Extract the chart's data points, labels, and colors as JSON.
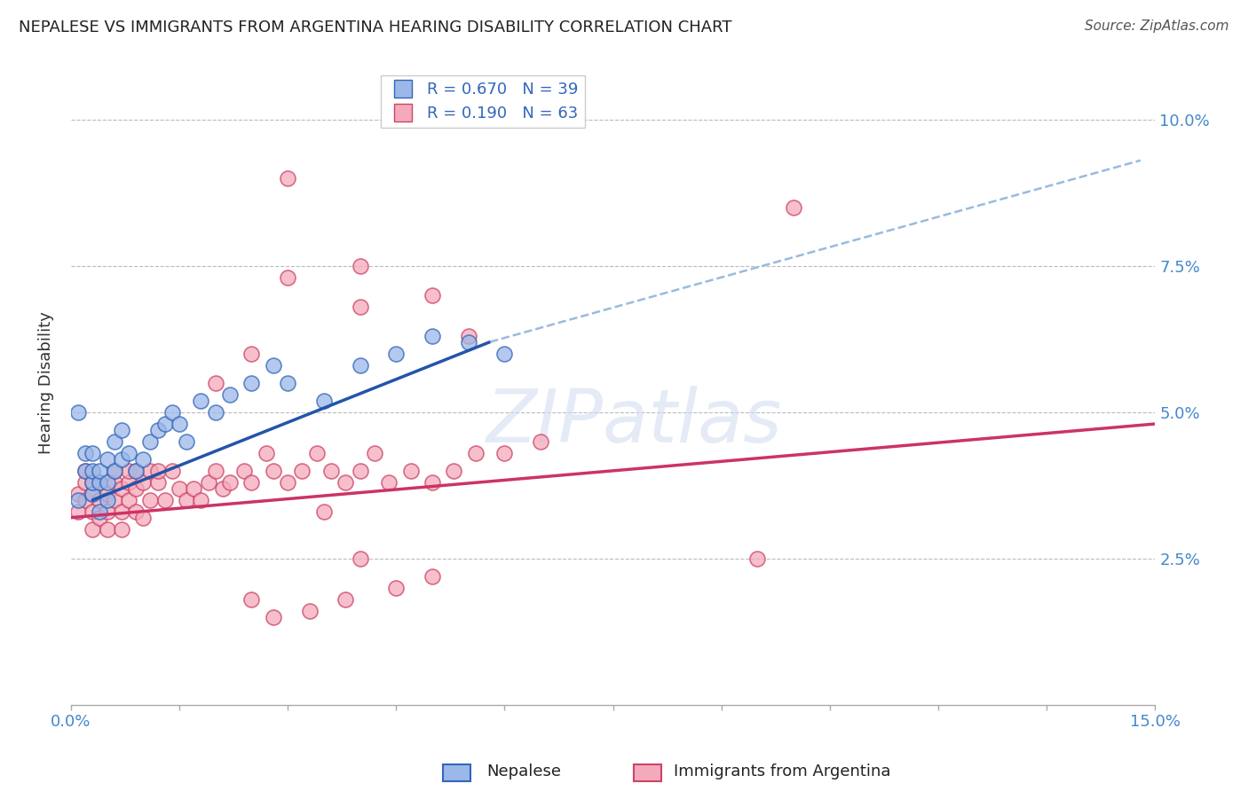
{
  "title": "NEPALESE VS IMMIGRANTS FROM ARGENTINA HEARING DISABILITY CORRELATION CHART",
  "source": "Source: ZipAtlas.com",
  "ylabel": "Hearing Disability",
  "xlim": [
    0.0,
    0.15
  ],
  "ylim": [
    0.0,
    0.11
  ],
  "yticks": [
    0.025,
    0.05,
    0.075,
    0.1
  ],
  "yticklabels": [
    "2.5%",
    "5.0%",
    "7.5%",
    "10.0%"
  ],
  "legend_r1": "R = 0.670",
  "legend_n1": "N = 39",
  "legend_r2": "R = 0.190",
  "legend_n2": "N = 63",
  "blue_scatter_color": "#9BB8E8",
  "blue_edge_color": "#3366BB",
  "pink_scatter_color": "#F5AABC",
  "pink_edge_color": "#CC4466",
  "blue_line_color": "#2255AA",
  "pink_line_color": "#CC3366",
  "dashed_line_color": "#99BBDD",
  "watermark_text": "ZIPatlas",
  "nepalese_x": [
    0.001,
    0.001,
    0.002,
    0.002,
    0.003,
    0.003,
    0.003,
    0.003,
    0.004,
    0.004,
    0.004,
    0.005,
    0.005,
    0.005,
    0.006,
    0.006,
    0.007,
    0.007,
    0.008,
    0.009,
    0.01,
    0.011,
    0.012,
    0.013,
    0.014,
    0.015,
    0.016,
    0.018,
    0.02,
    0.022,
    0.025,
    0.028,
    0.03,
    0.035,
    0.04,
    0.045,
    0.05,
    0.055,
    0.06
  ],
  "nepalese_y": [
    0.05,
    0.035,
    0.04,
    0.043,
    0.036,
    0.038,
    0.04,
    0.043,
    0.033,
    0.038,
    0.04,
    0.035,
    0.038,
    0.042,
    0.04,
    0.045,
    0.042,
    0.047,
    0.043,
    0.04,
    0.042,
    0.045,
    0.047,
    0.048,
    0.05,
    0.048,
    0.045,
    0.052,
    0.05,
    0.053,
    0.055,
    0.058,
    0.055,
    0.052,
    0.058,
    0.06,
    0.063,
    0.062,
    0.06
  ],
  "argentina_x": [
    0.001,
    0.001,
    0.002,
    0.002,
    0.002,
    0.003,
    0.003,
    0.003,
    0.003,
    0.004,
    0.004,
    0.004,
    0.005,
    0.005,
    0.005,
    0.006,
    0.006,
    0.006,
    0.007,
    0.007,
    0.007,
    0.008,
    0.008,
    0.008,
    0.009,
    0.009,
    0.009,
    0.01,
    0.01,
    0.011,
    0.011,
    0.012,
    0.012,
    0.013,
    0.014,
    0.015,
    0.016,
    0.017,
    0.018,
    0.019,
    0.02,
    0.021,
    0.022,
    0.024,
    0.025,
    0.027,
    0.028,
    0.03,
    0.032,
    0.034,
    0.036,
    0.038,
    0.04,
    0.042,
    0.044,
    0.047,
    0.05,
    0.053,
    0.056,
    0.06,
    0.065,
    0.095,
    0.1
  ],
  "argentina_y": [
    0.036,
    0.033,
    0.038,
    0.035,
    0.04,
    0.03,
    0.033,
    0.036,
    0.038,
    0.032,
    0.035,
    0.038,
    0.03,
    0.033,
    0.036,
    0.038,
    0.035,
    0.04,
    0.03,
    0.033,
    0.037,
    0.035,
    0.038,
    0.04,
    0.033,
    0.037,
    0.04,
    0.032,
    0.038,
    0.035,
    0.04,
    0.038,
    0.04,
    0.035,
    0.04,
    0.037,
    0.035,
    0.037,
    0.035,
    0.038,
    0.04,
    0.037,
    0.038,
    0.04,
    0.038,
    0.043,
    0.04,
    0.038,
    0.04,
    0.043,
    0.04,
    0.038,
    0.04,
    0.043,
    0.038,
    0.04,
    0.038,
    0.04,
    0.043,
    0.043,
    0.045,
    0.025,
    0.085
  ],
  "blue_line_x": [
    0.003,
    0.058
  ],
  "blue_line_y": [
    0.035,
    0.062
  ],
  "pink_line_x": [
    0.0,
    0.15
  ],
  "pink_line_y": [
    0.032,
    0.048
  ],
  "dashed_line_x": [
    0.058,
    0.148
  ],
  "dashed_line_y": [
    0.062,
    0.093
  ],
  "extra_argentina_x": [
    0.02,
    0.03,
    0.025,
    0.04,
    0.05,
    0.055,
    0.04,
    0.03,
    0.035,
    0.04,
    0.045,
    0.05,
    0.025,
    0.028,
    0.033,
    0.038
  ],
  "extra_argentina_y": [
    0.055,
    0.073,
    0.06,
    0.068,
    0.07,
    0.063,
    0.075,
    0.09,
    0.033,
    0.025,
    0.02,
    0.022,
    0.018,
    0.015,
    0.016,
    0.018
  ]
}
